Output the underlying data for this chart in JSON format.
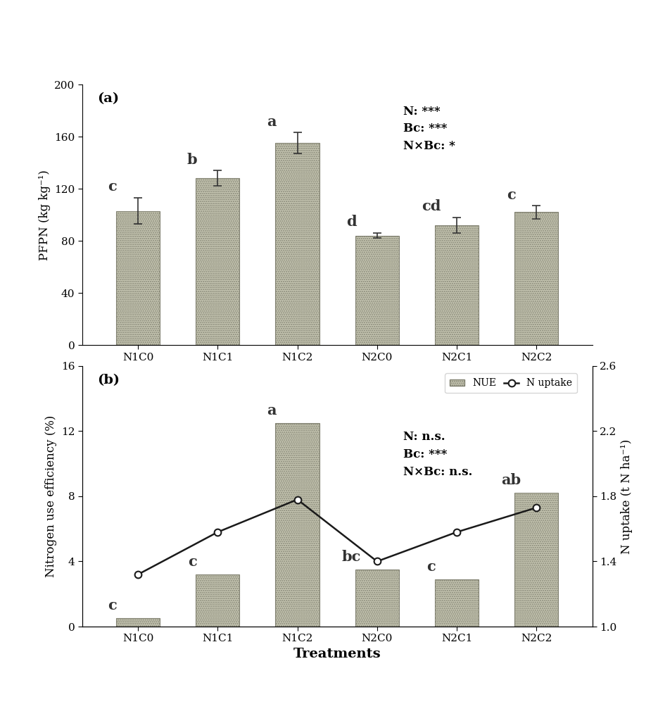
{
  "categories": [
    "N1C0",
    "N1C1",
    "N1C2",
    "N2C0",
    "N2C1",
    "N2C2"
  ],
  "pfpn_values": [
    103,
    128,
    155,
    84,
    92,
    102
  ],
  "pfpn_errors": [
    10,
    6,
    8,
    2,
    6,
    5
  ],
  "pfpn_labels": [
    "c",
    "b",
    "a",
    "d",
    "cd",
    "c"
  ],
  "pfpn_ylabel": "PFPN (kg kg⁻¹)",
  "pfpn_ylim": [
    0,
    200
  ],
  "pfpn_yticks": [
    0,
    40,
    80,
    120,
    160,
    200
  ],
  "pfpn_annot": "N: ***\nBc: ***\nN×Bc: *",
  "nue_values": [
    0.5,
    3.2,
    12.5,
    3.5,
    2.9,
    8.2
  ],
  "nue_labels": [
    "c",
    "c",
    "a",
    "bc",
    "c",
    "ab"
  ],
  "nue_ylabel": "Nitrogen use efficiency (%)",
  "nue_ylim": [
    0,
    16
  ],
  "nue_yticks": [
    0,
    4,
    8,
    12,
    16
  ],
  "nuptake_values": [
    1.32,
    1.58,
    1.78,
    1.4,
    1.58,
    1.73
  ],
  "nuptake_ylabel": "N uptake (t N ha⁻¹)",
  "nuptake_ylim": [
    1.0,
    2.6
  ],
  "nuptake_yticks": [
    1.0,
    1.4,
    1.8,
    2.2,
    2.6
  ],
  "nue_annot": "N: n.s.\nBc: ***\nN×Bc: n.s.",
  "bar_facecolor": "#c8c8b4",
  "bar_edgecolor": "#808070",
  "line_color": "#1a1a1a",
  "background_color": "#ffffff",
  "xlabel": "Treatments",
  "label_fontsize": 12,
  "tick_fontsize": 11,
  "annot_fontsize": 12,
  "letter_fontsize": 15,
  "bar_width": 0.55
}
